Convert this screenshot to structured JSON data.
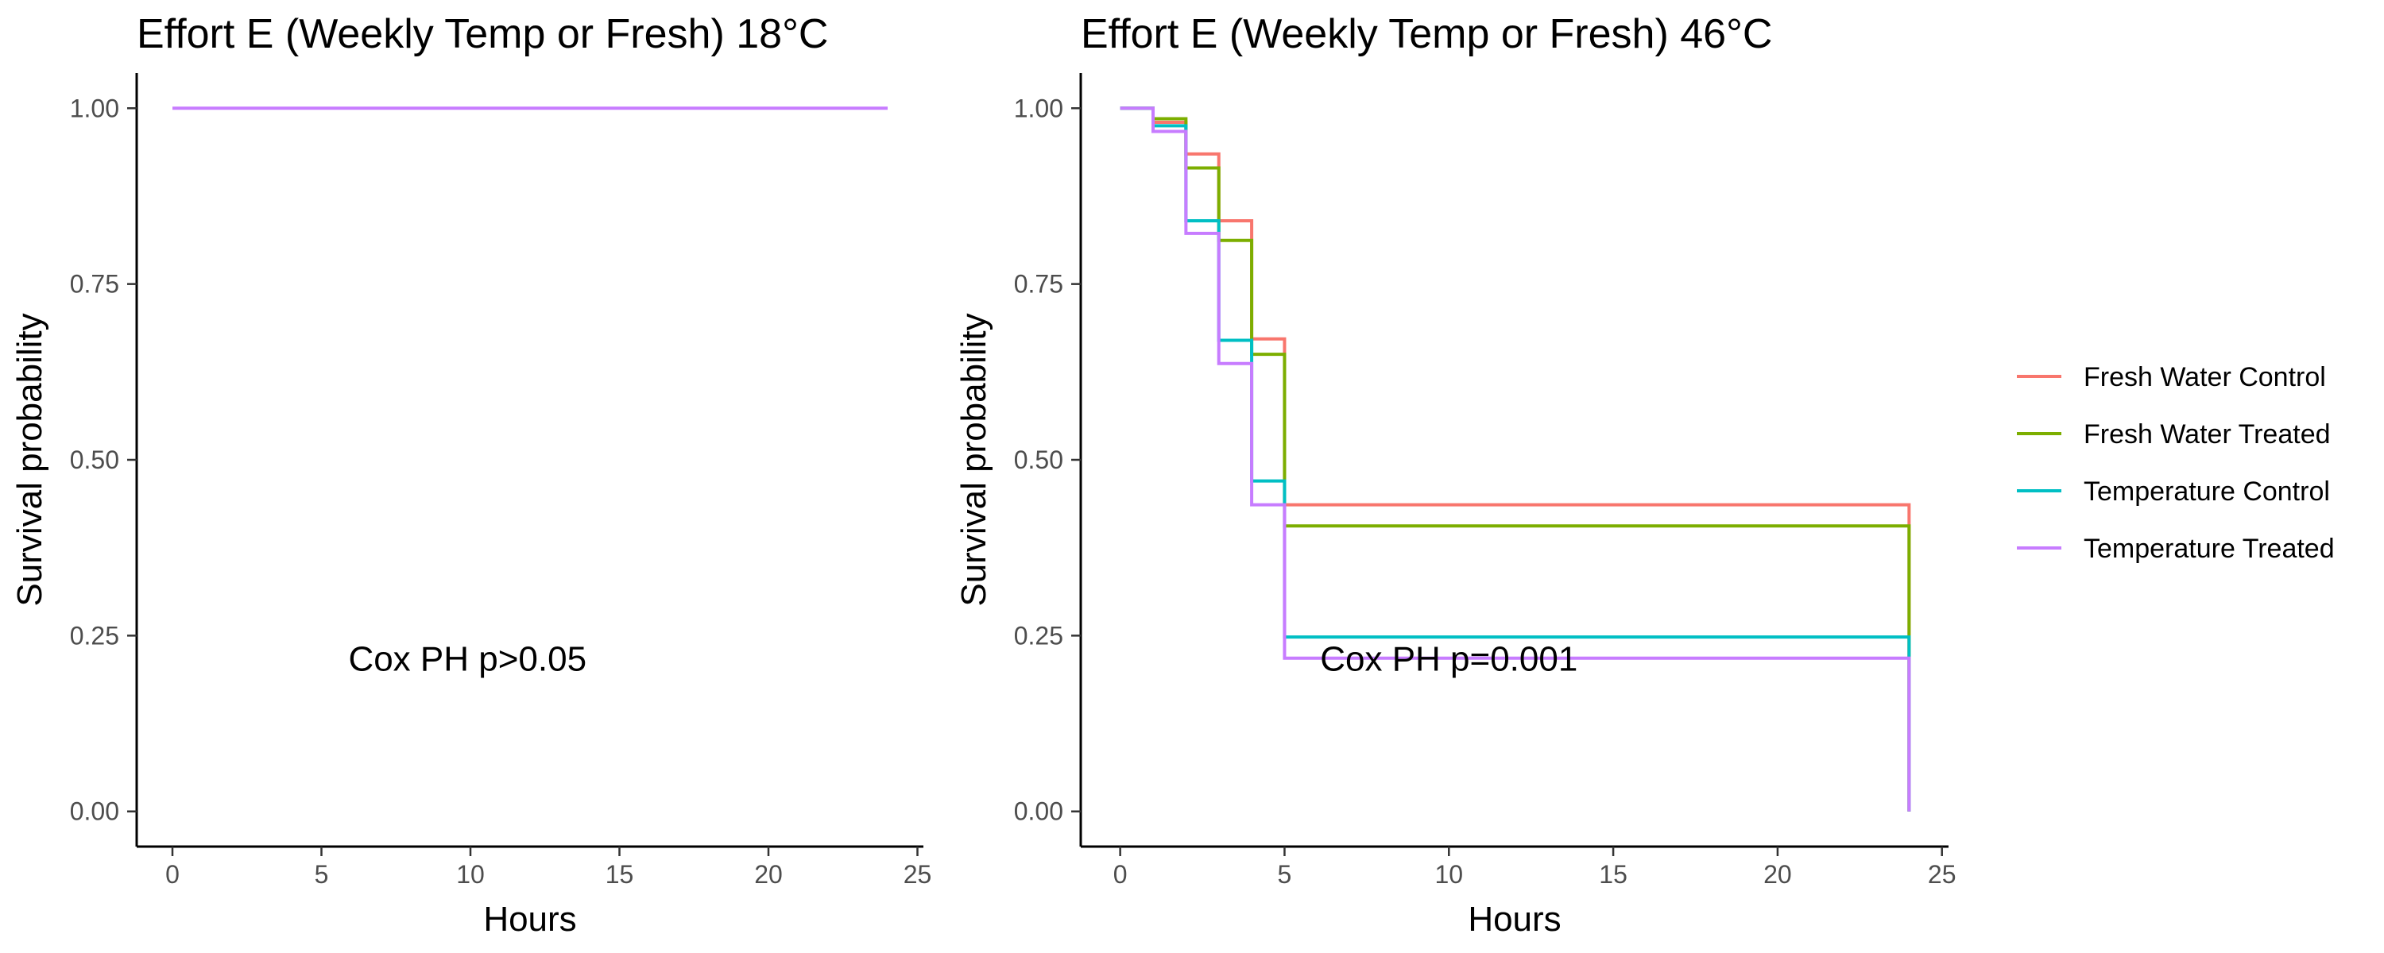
{
  "chart_data": [
    {
      "type": "line",
      "step": true,
      "title": "Effort E (Weekly Temp or Fresh) 18°C",
      "xlabel": "Hours",
      "ylabel": "Survival probability",
      "xlim": [
        -1.2,
        25.2
      ],
      "ylim": [
        -0.05,
        1.05
      ],
      "xticks": [
        0,
        5,
        10,
        15,
        20,
        25
      ],
      "xtick_labels": [
        "0",
        "5",
        "10",
        "15",
        "20",
        "25"
      ],
      "yticks": [
        0,
        0.25,
        0.5,
        0.75,
        1
      ],
      "ytick_labels": [
        "0.00",
        "0.25",
        "0.50",
        "0.75",
        "1.00"
      ],
      "grid": false,
      "annotation": {
        "text": "Cox PH p>0.05",
        "x": 9.9,
        "y": 0.2
      },
      "series": [
        {
          "name": "Temperature Treated",
          "color": "#c77cff",
          "x": [
            0,
            24
          ],
          "y": [
            1.0,
            1.0
          ]
        }
      ]
    },
    {
      "type": "line",
      "step": true,
      "title": "Effort E (Weekly Temp or Fresh) 46°C",
      "xlabel": "Hours",
      "ylabel": "Survival probability",
      "xlim": [
        -1.2,
        25.2
      ],
      "ylim": [
        -0.05,
        1.05
      ],
      "xticks": [
        0,
        5,
        10,
        15,
        20,
        25
      ],
      "xtick_labels": [
        "0",
        "5",
        "10",
        "15",
        "20",
        "25"
      ],
      "yticks": [
        0,
        0.25,
        0.5,
        0.75,
        1
      ],
      "ytick_labels": [
        "0.00",
        "0.25",
        "0.50",
        "0.75",
        "1.00"
      ],
      "grid": false,
      "legend_position": "right",
      "annotation": {
        "text": "Cox PH p=0.001",
        "x": 10.0,
        "y": 0.2
      },
      "series": [
        {
          "name": "Fresh Water Control",
          "color": "#f8766d",
          "x": [
            0,
            1,
            2,
            3,
            4,
            5,
            24,
            24
          ],
          "y": [
            1.0,
            0.98,
            0.935,
            0.84,
            0.672,
            0.436,
            0.436,
            0.0
          ]
        },
        {
          "name": "Fresh Water Treated",
          "color": "#7cae00",
          "x": [
            0,
            1,
            2,
            3,
            4,
            5,
            24,
            24
          ],
          "y": [
            1.0,
            0.985,
            0.915,
            0.812,
            0.65,
            0.406,
            0.406,
            0.0
          ]
        },
        {
          "name": "Temperature Control",
          "color": "#00bfc4",
          "x": [
            0,
            1,
            2,
            3,
            4,
            5,
            24,
            24
          ],
          "y": [
            1.0,
            0.975,
            0.84,
            0.67,
            0.47,
            0.248,
            0.248,
            0.0
          ]
        },
        {
          "name": "Temperature Treated",
          "color": "#c77cff",
          "x": [
            0,
            1,
            2,
            3,
            4,
            5,
            24,
            24
          ],
          "y": [
            1.0,
            0.967,
            0.822,
            0.637,
            0.436,
            0.218,
            0.218,
            0.0
          ]
        }
      ]
    }
  ]
}
